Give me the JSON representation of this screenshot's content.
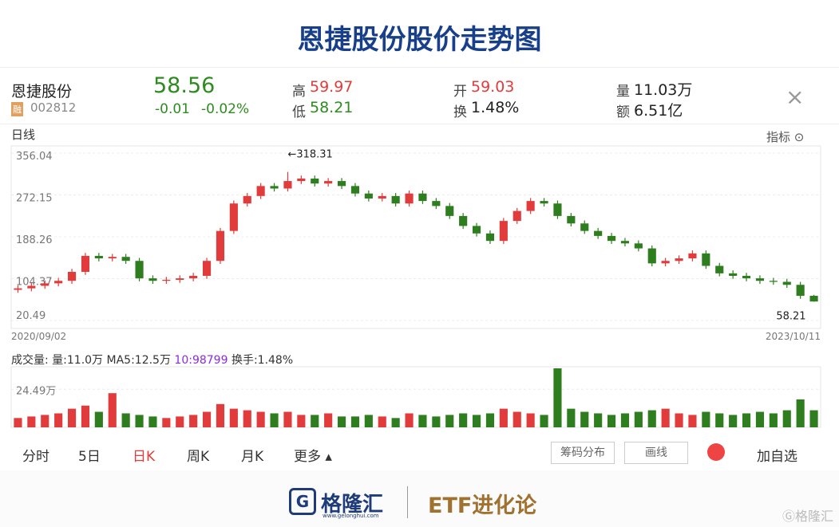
{
  "page": {
    "title": "恩捷股份股价走势图",
    "header": {
      "name": "恩捷股份",
      "tag": "融",
      "code": "002812",
      "price": "58.56",
      "change": "-0.01",
      "change_pct": "-0.02%",
      "high_label": "高",
      "high": "59.97",
      "low_label": "低",
      "low": "58.21",
      "open_label": "开",
      "open": "59.03",
      "turnover_label": "换",
      "turnover": "1.48%",
      "volume_label": "量",
      "volume": "11.03万",
      "amount_label": "额",
      "amount": "6.51亿"
    },
    "period_label": "日线",
    "indicator_label": "指标",
    "volume_header": [
      "成交量:",
      "量:11.0万",
      "MA5:12.5万",
      "10:98799",
      "换手:1.48%"
    ],
    "tabs": [
      "分时",
      "5日",
      "日K",
      "周K",
      "月K",
      "更多"
    ],
    "buttons": [
      "筹码分布",
      "画线",
      "加自选"
    ],
    "footer": {
      "brand": "格隆汇",
      "site": "www.gelonghui.com",
      "column": "ETF进化论",
      "watermark": "格隆汇"
    }
  },
  "chart_data": {
    "type": "candlestick",
    "date_range": [
      "2020/09/02",
      "2023/10/11"
    ],
    "ylim": [
      20.49,
      356.04
    ],
    "yticks": [
      356.04,
      272.15,
      188.26,
      104.37,
      20.49
    ],
    "grid": true,
    "up_color": "#e23b3b",
    "down_color": "#2e7d1f",
    "high_annotation": "←318.31",
    "low_annotation": "58.21",
    "open": [
      82,
      85,
      90,
      95,
      100,
      118,
      150,
      145,
      148,
      140,
      105,
      100,
      102,
      105,
      110,
      140,
      200,
      255,
      270,
      290,
      285,
      300,
      305,
      295,
      300,
      290,
      275,
      265,
      270,
      255,
      275,
      260,
      250,
      230,
      210,
      195,
      180,
      220,
      240,
      260,
      255,
      230,
      215,
      200,
      190,
      180,
      175,
      165,
      135,
      140,
      145,
      155,
      130,
      115,
      110,
      105,
      100,
      98,
      92,
      70
    ],
    "high": [
      91,
      96,
      101,
      106,
      124,
      156,
      156,
      154,
      154,
      146,
      111,
      108,
      111,
      116,
      146,
      206,
      261,
      276,
      296,
      296,
      318.31,
      311,
      311,
      306,
      306,
      296,
      281,
      276,
      276,
      281,
      281,
      266,
      256,
      236,
      216,
      201,
      226,
      246,
      266,
      266,
      261,
      236,
      221,
      206,
      196,
      186,
      181,
      171,
      146,
      151,
      161,
      161,
      136,
      121,
      116,
      111,
      106,
      104,
      98,
      72
    ],
    "low": [
      76,
      79,
      84,
      89,
      94,
      112,
      139,
      139,
      134,
      99,
      94,
      94,
      96,
      99,
      104,
      134,
      194,
      249,
      264,
      279,
      279,
      294,
      289,
      289,
      284,
      269,
      259,
      259,
      249,
      249,
      254,
      244,
      224,
      204,
      189,
      174,
      174,
      214,
      234,
      249,
      224,
      209,
      194,
      184,
      174,
      169,
      159,
      129,
      129,
      134,
      139,
      124,
      109,
      104,
      99,
      94,
      92,
      86,
      64,
      58.21
    ],
    "close": [
      85,
      90,
      95,
      100,
      118,
      150,
      145,
      148,
      140,
      105,
      100,
      102,
      105,
      110,
      140,
      200,
      255,
      270,
      290,
      285,
      300,
      305,
      295,
      300,
      290,
      275,
      265,
      270,
      255,
      275,
      260,
      250,
      230,
      210,
      195,
      180,
      220,
      240,
      260,
      255,
      230,
      215,
      200,
      190,
      180,
      175,
      165,
      135,
      140,
      145,
      155,
      130,
      115,
      110,
      105,
      100,
      98,
      92,
      70,
      58.56
    ],
    "volume": [
      6,
      7,
      8,
      9,
      12,
      14,
      10,
      22,
      9,
      8,
      7,
      6,
      7,
      8,
      10,
      15,
      12,
      11,
      10,
      9,
      10,
      8,
      8,
      9,
      7,
      7,
      8,
      7,
      6,
      9,
      8,
      7,
      8,
      9,
      8,
      9,
      12,
      10,
      9,
      8,
      38,
      12,
      10,
      9,
      8,
      9,
      10,
      11,
      12,
      9,
      8,
      10,
      9,
      8,
      9,
      10,
      9,
      11,
      18,
      11
    ],
    "vlim": [
      0,
      38
    ],
    "vticks": [
      {
        "value": 24.49,
        "label": "24.49万"
      }
    ]
  }
}
